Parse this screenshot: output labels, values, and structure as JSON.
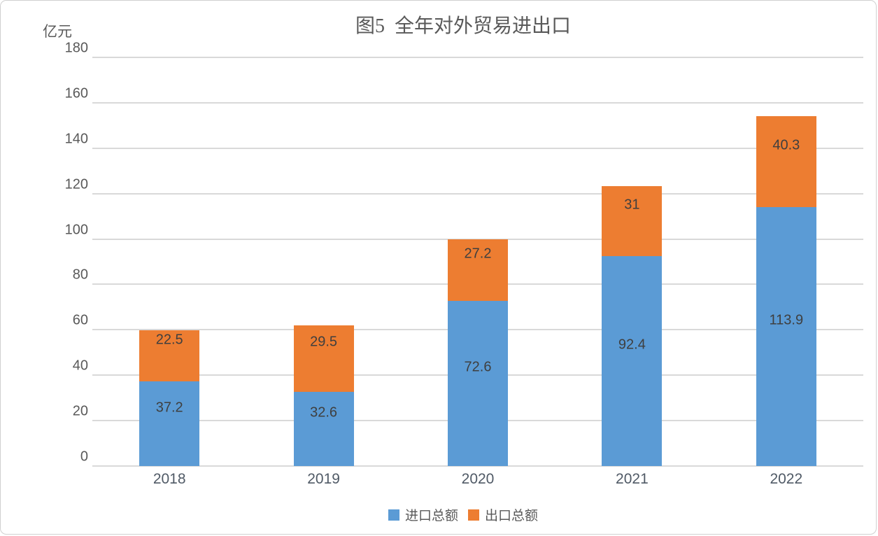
{
  "chart_data": {
    "type": "bar",
    "stacked": true,
    "title": "图5  全年对外贸易进出口",
    "unit_label": "亿元",
    "categories": [
      "2018",
      "2019",
      "2020",
      "2021",
      "2022"
    ],
    "series": [
      {
        "name": "进口总额",
        "color": "#5B9BD5",
        "values": [
          37.2,
          32.6,
          72.6,
          92.4,
          113.9
        ]
      },
      {
        "name": "出口总额",
        "color": "#ED7D31",
        "values": [
          22.5,
          29.5,
          27.2,
          31,
          40.3
        ]
      }
    ],
    "ylim": [
      0,
      180
    ],
    "ytick_step": 20,
    "grid": true,
    "legend_position": "bottom",
    "theme": {
      "gridline_color": "#D9D9D9",
      "axis_text_color": "#595959",
      "data_label_color": "#3F3F3F",
      "border_color": "#D0D0D0"
    }
  }
}
